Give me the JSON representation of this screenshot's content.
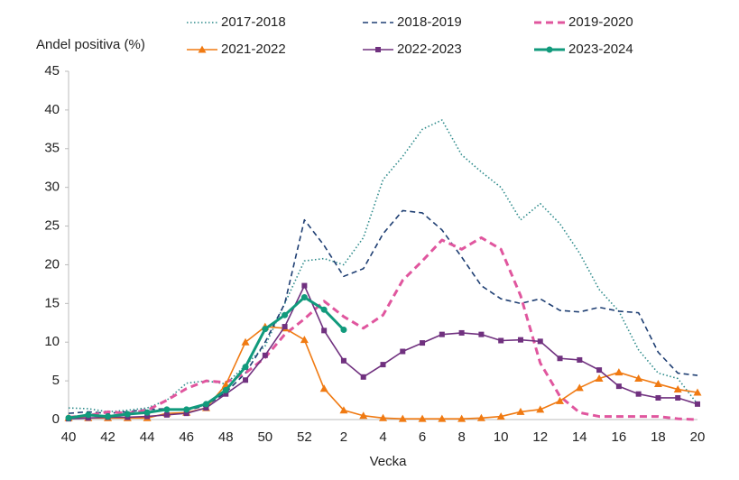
{
  "chart_data": {
    "type": "line",
    "ylabel": "Andel positiva (%)",
    "xlabel": "Vecka",
    "categories": [
      "40",
      null,
      "42",
      null,
      "44",
      null,
      "46",
      null,
      "48",
      null,
      "50",
      null,
      "52",
      null,
      "2",
      null,
      "4",
      null,
      "6",
      null,
      "8",
      null,
      "10",
      null,
      "12",
      null,
      "14",
      null,
      "16",
      null,
      "18",
      null,
      "20"
    ],
    "ylim": [
      0,
      45
    ],
    "yticks": [
      0,
      5,
      10,
      15,
      20,
      25,
      30,
      35,
      40,
      45
    ],
    "series": [
      {
        "name": "2017-2018",
        "color": "#2e8b8b",
        "style": "dotted",
        "marker": "none",
        "values": [
          1.5,
          1.4,
          1.0,
          1.2,
          1.5,
          2.5,
          4.7,
          5.0,
          4.6,
          7,
          9.5,
          15,
          20.5,
          20.8,
          20.0,
          23.5,
          31,
          34,
          37.5,
          38.7,
          34.2,
          32,
          30,
          25.8,
          27.9,
          25.3,
          21.5,
          16.8,
          14,
          9,
          6,
          5.3,
          2.0
        ]
      },
      {
        "name": "2018-2019",
        "color": "#1f3f73",
        "style": "dashed",
        "marker": "none",
        "values": [
          0.8,
          1.0,
          0.8,
          1.0,
          1.3,
          1.4,
          1.2,
          1.8,
          3.5,
          6,
          10,
          15,
          25.8,
          22.5,
          18.5,
          19.5,
          24,
          27,
          26.7,
          24.5,
          21,
          17.3,
          15.6,
          15,
          15.6,
          14.1,
          13.9,
          14.5,
          14.0,
          13.8,
          8.7,
          6,
          5.7
        ]
      },
      {
        "name": "2019-2020",
        "color": "#e0569e",
        "style": "bold-dashed",
        "marker": "none",
        "values": [
          0.3,
          0.5,
          1.0,
          0.8,
          1.2,
          2.5,
          4,
          5,
          4.8,
          6,
          8,
          11,
          13,
          15.3,
          13.3,
          11.8,
          13.5,
          18,
          20.5,
          23.2,
          22,
          23.5,
          22,
          16,
          7.3,
          3,
          0.9,
          0.4,
          0.4,
          0.4,
          0.4,
          0.1,
          0
        ]
      },
      {
        "name": "2021-2022",
        "color": "#f07a12",
        "style": "solid",
        "marker": "triangle",
        "values": [
          0.2,
          0.2,
          0.2,
          0.2,
          0.2,
          0.8,
          0.9,
          1.5,
          4.5,
          10,
          12,
          11.8,
          10.3,
          4,
          1.2,
          0.5,
          0.2,
          0.1,
          0.1,
          0.1,
          0.1,
          0.2,
          0.4,
          1.0,
          1.3,
          2.4,
          4.1,
          5.3,
          6.1,
          5.3,
          4.6,
          3.9,
          3.5
        ]
      },
      {
        "name": "2022-2023",
        "color": "#70317f",
        "style": "solid",
        "marker": "square",
        "values": [
          0.1,
          0.2,
          0.3,
          0.3,
          0.4,
          0.6,
          0.8,
          1.5,
          3.3,
          5.1,
          8.3,
          12,
          17.3,
          11.5,
          7.6,
          5.5,
          7.1,
          8.8,
          9.9,
          11,
          11.2,
          11,
          10.2,
          10.3,
          10.1,
          7.9,
          7.7,
          6.4,
          4.3,
          3.3,
          2.8,
          2.8,
          2.0
        ]
      },
      {
        "name": "2023-2024",
        "color": "#119a7c",
        "style": "thick",
        "marker": "circle",
        "values": [
          0.2,
          0.6,
          0.4,
          0.7,
          0.9,
          1.3,
          1.3,
          2.0,
          3.8,
          6.8,
          11.7,
          13.5,
          15.8,
          14.2,
          11.6,
          null,
          null,
          null,
          null,
          null,
          null,
          null,
          null,
          null,
          null,
          null,
          null,
          null,
          null,
          null,
          null,
          null,
          null
        ]
      }
    ]
  }
}
